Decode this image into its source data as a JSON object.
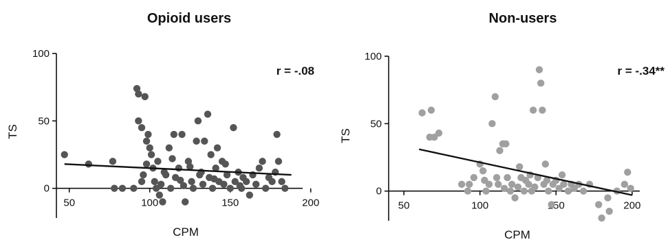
{
  "chart_data": [
    {
      "type": "scatter",
      "title": "Opioid users",
      "xlabel": "CPM",
      "ylabel": "TS",
      "annotation": "r = -.08",
      "xlim": [
        42,
        195
      ],
      "ylim": [
        -22,
        100
      ],
      "xticks": [
        50,
        100,
        150,
        200
      ],
      "yticks": [
        0,
        50,
        100
      ],
      "grid": false,
      "point_color": "#555555",
      "fit_line": {
        "x": [
          47,
          188
        ],
        "y": [
          18,
          10
        ]
      },
      "points": [
        {
          "x": 47,
          "y": 25
        },
        {
          "x": 62,
          "y": 18
        },
        {
          "x": 77,
          "y": 20
        },
        {
          "x": 78,
          "y": 0
        },
        {
          "x": 83,
          "y": 0
        },
        {
          "x": 90,
          "y": 0
        },
        {
          "x": 92,
          "y": 74
        },
        {
          "x": 93,
          "y": 70
        },
        {
          "x": 95,
          "y": 5
        },
        {
          "x": 97,
          "y": 68
        },
        {
          "x": 93,
          "y": 50
        },
        {
          "x": 95,
          "y": 45
        },
        {
          "x": 96,
          "y": 10
        },
        {
          "x": 98,
          "y": 35
        },
        {
          "x": 99,
          "y": 40
        },
        {
          "x": 100,
          "y": 30
        },
        {
          "x": 101,
          "y": 25
        },
        {
          "x": 102,
          "y": 15
        },
        {
          "x": 103,
          "y": 5
        },
        {
          "x": 104,
          "y": 0
        },
        {
          "x": 105,
          "y": 20
        },
        {
          "x": 106,
          "y": -5
        },
        {
          "x": 107,
          "y": 3
        },
        {
          "x": 108,
          "y": -10
        },
        {
          "x": 110,
          "y": 10
        },
        {
          "x": 112,
          "y": 30
        },
        {
          "x": 113,
          "y": 0
        },
        {
          "x": 115,
          "y": 40
        },
        {
          "x": 116,
          "y": 8
        },
        {
          "x": 118,
          "y": 15
        },
        {
          "x": 120,
          "y": 40
        },
        {
          "x": 121,
          "y": 2
        },
        {
          "x": 122,
          "y": -10
        },
        {
          "x": 124,
          "y": 20
        },
        {
          "x": 126,
          "y": 5
        },
        {
          "x": 127,
          "y": 0
        },
        {
          "x": 129,
          "y": 35
        },
        {
          "x": 130,
          "y": 50
        },
        {
          "x": 131,
          "y": 10
        },
        {
          "x": 133,
          "y": 3
        },
        {
          "x": 134,
          "y": 35
        },
        {
          "x": 136,
          "y": 55
        },
        {
          "x": 137,
          "y": 8
        },
        {
          "x": 138,
          "y": 25
        },
        {
          "x": 139,
          "y": 0
        },
        {
          "x": 141,
          "y": 15
        },
        {
          "x": 142,
          "y": 30
        },
        {
          "x": 143,
          "y": 5
        },
        {
          "x": 145,
          "y": 20
        },
        {
          "x": 146,
          "y": 3
        },
        {
          "x": 148,
          "y": 10
        },
        {
          "x": 150,
          "y": 0
        },
        {
          "x": 152,
          "y": 45
        },
        {
          "x": 153,
          "y": 5
        },
        {
          "x": 155,
          "y": 12
        },
        {
          "x": 157,
          "y": 0
        },
        {
          "x": 158,
          "y": 8
        },
        {
          "x": 160,
          "y": 5
        },
        {
          "x": 162,
          "y": -5
        },
        {
          "x": 164,
          "y": 10
        },
        {
          "x": 166,
          "y": 3
        },
        {
          "x": 168,
          "y": 15
        },
        {
          "x": 170,
          "y": 20
        },
        {
          "x": 172,
          "y": 0
        },
        {
          "x": 174,
          "y": 8
        },
        {
          "x": 176,
          "y": 5
        },
        {
          "x": 178,
          "y": 12
        },
        {
          "x": 179,
          "y": 40
        },
        {
          "x": 180,
          "y": 20
        },
        {
          "x": 182,
          "y": 5
        },
        {
          "x": 184,
          "y": 0
        },
        {
          "x": 98,
          "y": 18
        },
        {
          "x": 109,
          "y": 12
        },
        {
          "x": 114,
          "y": 22
        },
        {
          "x": 119,
          "y": 6
        },
        {
          "x": 125,
          "y": 16
        },
        {
          "x": 132,
          "y": 12
        },
        {
          "x": 140,
          "y": 7
        },
        {
          "x": 147,
          "y": 18
        },
        {
          "x": 156,
          "y": 2
        }
      ]
    },
    {
      "type": "scatter",
      "title": "Non-users",
      "xlabel": "CPM",
      "ylabel": "TS",
      "annotation": "r = -.34**",
      "xlim": [
        40,
        205
      ],
      "ylim": [
        -22,
        100
      ],
      "xticks": [
        50,
        100,
        150,
        200
      ],
      "yticks": [
        0,
        50,
        100
      ],
      "grid": false,
      "point_color": "#a0a0a0",
      "fit_line": {
        "x": [
          60,
          200
        ],
        "y": [
          31,
          -3
        ]
      },
      "points": [
        {
          "x": 62,
          "y": 58
        },
        {
          "x": 68,
          "y": 60
        },
        {
          "x": 67,
          "y": 40
        },
        {
          "x": 70,
          "y": 40
        },
        {
          "x": 73,
          "y": 43
        },
        {
          "x": 92,
          "y": 0
        },
        {
          "x": 93,
          "y": 5
        },
        {
          "x": 100,
          "y": 20
        },
        {
          "x": 102,
          "y": 15
        },
        {
          "x": 103,
          "y": 8
        },
        {
          "x": 104,
          "y": 0
        },
        {
          "x": 106,
          "y": 5
        },
        {
          "x": 108,
          "y": 50
        },
        {
          "x": 110,
          "y": 70
        },
        {
          "x": 111,
          "y": 10
        },
        {
          "x": 112,
          "y": 5
        },
        {
          "x": 113,
          "y": 30
        },
        {
          "x": 115,
          "y": 35
        },
        {
          "x": 117,
          "y": 35
        },
        {
          "x": 118,
          "y": 10
        },
        {
          "x": 120,
          "y": 0
        },
        {
          "x": 121,
          "y": 5
        },
        {
          "x": 123,
          "y": -5
        },
        {
          "x": 125,
          "y": 3
        },
        {
          "x": 127,
          "y": 10
        },
        {
          "x": 129,
          "y": 0
        },
        {
          "x": 130,
          "y": 8
        },
        {
          "x": 132,
          "y": 5
        },
        {
          "x": 134,
          "y": 0
        },
        {
          "x": 135,
          "y": 60
        },
        {
          "x": 136,
          "y": 3
        },
        {
          "x": 138,
          "y": 10
        },
        {
          "x": 139,
          "y": 90
        },
        {
          "x": 140,
          "y": 80
        },
        {
          "x": 141,
          "y": 60
        },
        {
          "x": 142,
          "y": 5
        },
        {
          "x": 143,
          "y": 20
        },
        {
          "x": 145,
          "y": 0
        },
        {
          "x": 147,
          "y": -10
        },
        {
          "x": 148,
          "y": 5
        },
        {
          "x": 150,
          "y": 8
        },
        {
          "x": 152,
          "y": 2
        },
        {
          "x": 155,
          "y": 5
        },
        {
          "x": 158,
          "y": 0
        },
        {
          "x": 160,
          "y": 5
        },
        {
          "x": 165,
          "y": 5
        },
        {
          "x": 168,
          "y": 0
        },
        {
          "x": 172,
          "y": 5
        },
        {
          "x": 178,
          "y": -10
        },
        {
          "x": 180,
          "y": -20
        },
        {
          "x": 184,
          "y": -5
        },
        {
          "x": 185,
          "y": -15
        },
        {
          "x": 190,
          "y": 0
        },
        {
          "x": 195,
          "y": 5
        },
        {
          "x": 197,
          "y": 14
        },
        {
          "x": 199,
          "y": 2
        },
        {
          "x": 88,
          "y": 5
        },
        {
          "x": 96,
          "y": 10
        },
        {
          "x": 116,
          "y": 2
        },
        {
          "x": 126,
          "y": 18
        },
        {
          "x": 133,
          "y": 12
        },
        {
          "x": 144,
          "y": 8
        },
        {
          "x": 154,
          "y": 12
        },
        {
          "x": 162,
          "y": 2
        }
      ]
    }
  ]
}
